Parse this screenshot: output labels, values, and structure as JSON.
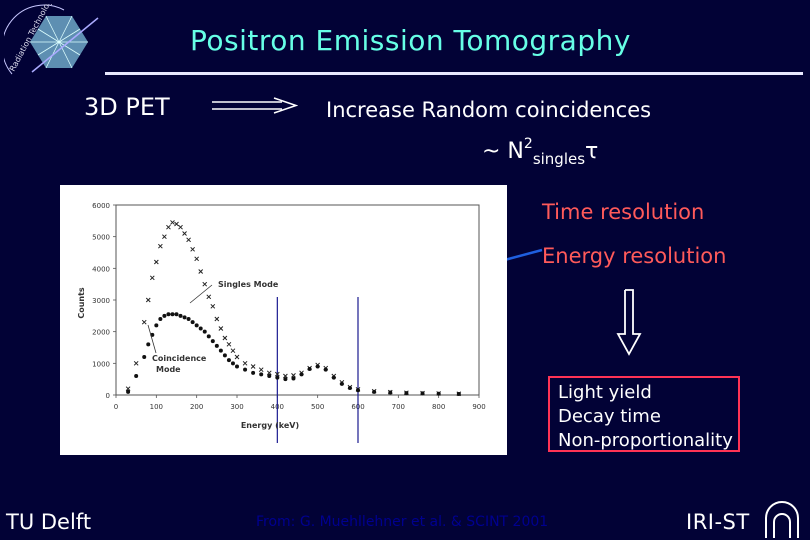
{
  "title": "Positron Emission Tomography",
  "labels": {
    "pet": "3D PET",
    "increase": "Increase Random coincidences",
    "formula_prefix": "~ N",
    "formula_sup": "2",
    "formula_sub": "singles",
    "formula_tail": "τ",
    "time_resolution": "Time resolution",
    "energy_resolution": "Energy resolution"
  },
  "properties": [
    "Light yield",
    "Decay time",
    "Non-proportionality"
  ],
  "footer": {
    "left": "TU Delft",
    "credit": "From: G. Muehllehner et al. & SCINT 2001",
    "right": "IRI-ST"
  },
  "logo_text": "Radiation Technology",
  "colors": {
    "background": "#020236",
    "title": "#66ffe6",
    "highlight": "#ff5a5a",
    "box_border": "#ff3355",
    "arrow": "#1f5fe0"
  },
  "chart_data": {
    "type": "scatter",
    "xlabel": "Energy (keV)",
    "ylabel": "Counts",
    "xlim": [
      0,
      900
    ],
    "ylim": [
      0,
      6000
    ],
    "xticks": [
      0,
      100,
      200,
      300,
      400,
      500,
      600,
      700,
      800,
      900
    ],
    "yticks": [
      0,
      1000,
      2000,
      3000,
      4000,
      5000,
      6000
    ],
    "window_markers_keV": [
      400,
      600
    ],
    "annotations": [
      "Singles Mode",
      "Coincidence Mode"
    ],
    "series": [
      {
        "name": "Singles Mode",
        "x": [
          30,
          50,
          70,
          80,
          90,
          100,
          110,
          120,
          130,
          140,
          150,
          160,
          170,
          180,
          190,
          200,
          210,
          220,
          230,
          240,
          250,
          260,
          270,
          280,
          290,
          300,
          320,
          340,
          360,
          380,
          400,
          420,
          440,
          460,
          480,
          500,
          520,
          540,
          560,
          580,
          600,
          640,
          680,
          720,
          760,
          800,
          850
        ],
        "y": [
          200,
          1000,
          2300,
          3000,
          3700,
          4200,
          4700,
          5000,
          5300,
          5450,
          5400,
          5300,
          5100,
          4900,
          4600,
          4300,
          3900,
          3500,
          3100,
          2800,
          2400,
          2100,
          1800,
          1600,
          1400,
          1200,
          1000,
          900,
          800,
          700,
          660,
          600,
          620,
          700,
          850,
          950,
          850,
          600,
          400,
          250,
          180,
          120,
          90,
          70,
          60,
          50,
          40
        ]
      },
      {
        "name": "Coincidence Mode",
        "x": [
          30,
          50,
          70,
          80,
          90,
          100,
          110,
          120,
          130,
          140,
          150,
          160,
          170,
          180,
          190,
          200,
          210,
          220,
          230,
          240,
          250,
          260,
          270,
          280,
          290,
          300,
          320,
          340,
          360,
          380,
          400,
          420,
          440,
          460,
          480,
          500,
          520,
          540,
          560,
          580,
          600,
          640,
          680,
          720,
          760,
          800,
          850
        ],
        "y": [
          100,
          600,
          1200,
          1600,
          1900,
          2200,
          2400,
          2500,
          2550,
          2550,
          2550,
          2500,
          2450,
          2400,
          2300,
          2200,
          2100,
          2000,
          1850,
          1700,
          1550,
          1400,
          1250,
          1100,
          1000,
          900,
          800,
          700,
          650,
          600,
          550,
          500,
          520,
          650,
          820,
          900,
          800,
          550,
          350,
          220,
          150,
          100,
          80,
          60,
          50,
          40,
          30
        ]
      }
    ]
  }
}
